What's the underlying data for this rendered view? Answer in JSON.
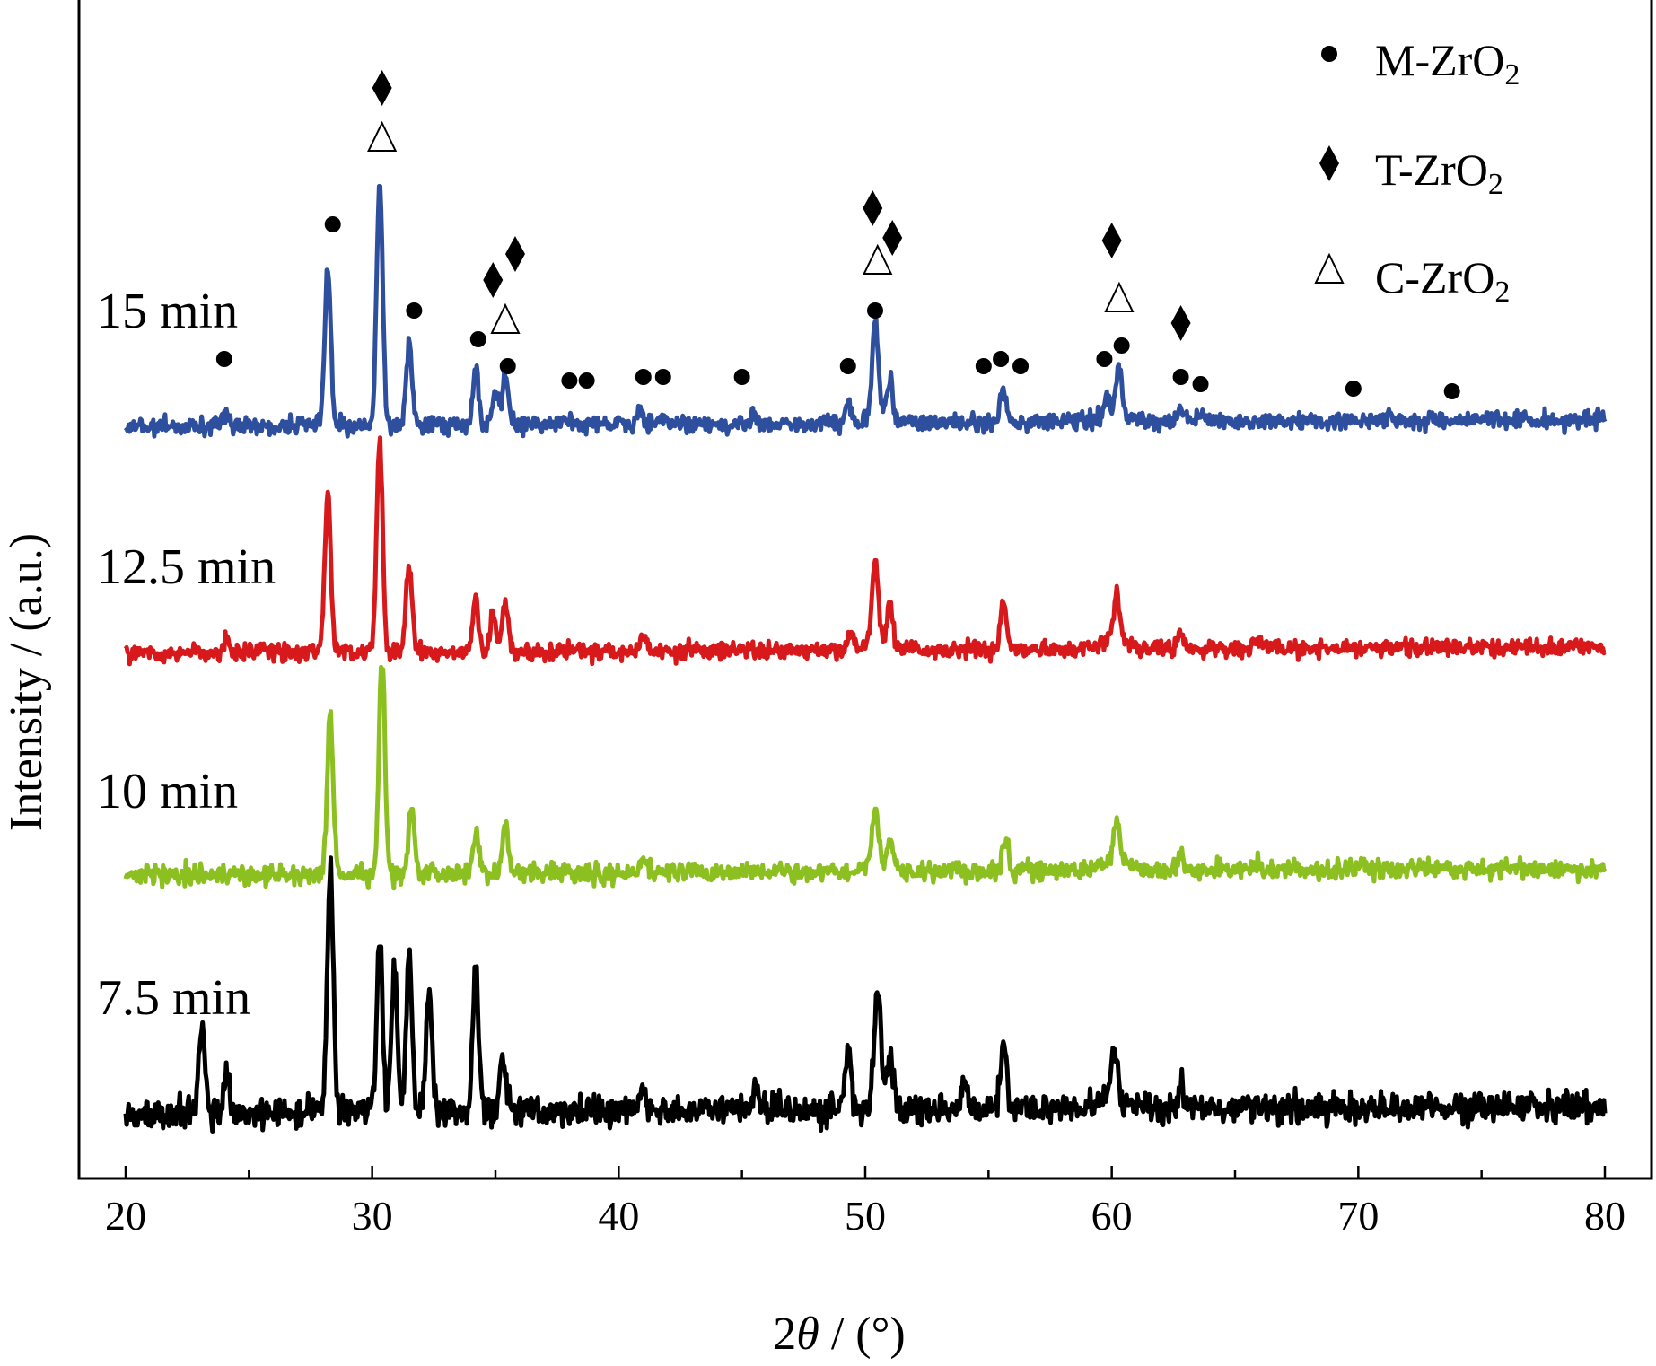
{
  "chart_data": {
    "type": "line",
    "xlabel_prefix": "2",
    "xlabel_symbol": "θ",
    "xlabel_suffix": " / (°)",
    "ylabel": "Intensity / (a.u.)",
    "xlim": [
      20,
      80
    ],
    "x_ticks": [
      "20",
      "30",
      "40",
      "50",
      "60",
      "70",
      "80"
    ],
    "grid": false,
    "legend_position": "top-right",
    "legend": [
      {
        "marker": "circle",
        "prefix": "M-ZrO",
        "sub": "2"
      },
      {
        "marker": "diamond",
        "prefix": "T-ZrO",
        "sub": "2"
      },
      {
        "marker": "triangle",
        "prefix": "C-ZrO",
        "sub": "2"
      }
    ],
    "series": [
      {
        "name": "15 min",
        "color": "#2e4f9e",
        "peaks": [
          [
            24.1,
            0.08
          ],
          [
            28.2,
            1.0
          ],
          [
            30.3,
            1.55
          ],
          [
            31.5,
            0.5
          ],
          [
            34.2,
            0.35
          ],
          [
            35.0,
            0.2
          ],
          [
            35.4,
            0.3
          ],
          [
            38.0,
            0.05
          ],
          [
            40.9,
            0.09
          ],
          [
            41.8,
            0.06
          ],
          [
            45.5,
            0.07
          ],
          [
            49.3,
            0.12
          ],
          [
            50.4,
            0.6
          ],
          [
            51.0,
            0.25
          ],
          [
            55.6,
            0.22
          ],
          [
            59.8,
            0.12
          ],
          [
            60.3,
            0.28
          ],
          [
            62.8,
            0.07
          ],
          [
            63.6,
            0.05
          ],
          [
            71.3,
            0.04
          ]
        ]
      },
      {
        "name": "12.5 min",
        "color": "#d7191c",
        "peaks": [
          [
            24.1,
            0.1
          ],
          [
            28.2,
            1.0
          ],
          [
            30.3,
            1.35
          ],
          [
            31.5,
            0.55
          ],
          [
            34.2,
            0.35
          ],
          [
            34.9,
            0.25
          ],
          [
            35.4,
            0.32
          ],
          [
            41.0,
            0.1
          ],
          [
            49.4,
            0.12
          ],
          [
            50.4,
            0.55
          ],
          [
            51.0,
            0.25
          ],
          [
            55.6,
            0.3
          ],
          [
            60.2,
            0.28
          ],
          [
            62.8,
            0.12
          ],
          [
            65.9,
            0.05
          ]
        ]
      },
      {
        "name": "10 min",
        "color": "#8cc020",
        "peaks": [
          [
            28.3,
            0.95
          ],
          [
            30.4,
            1.3
          ],
          [
            31.6,
            0.4
          ],
          [
            34.2,
            0.25
          ],
          [
            35.4,
            0.3
          ],
          [
            41.0,
            0.07
          ],
          [
            50.4,
            0.35
          ],
          [
            51.0,
            0.15
          ],
          [
            55.7,
            0.2
          ],
          [
            60.2,
            0.25
          ],
          [
            62.8,
            0.08
          ],
          [
            65.9,
            0.06
          ]
        ]
      },
      {
        "name": "7.5 min",
        "color": "#000000",
        "peaks": [
          [
            23.1,
            0.45
          ],
          [
            24.1,
            0.18
          ],
          [
            28.3,
            1.3
          ],
          [
            30.3,
            0.9
          ],
          [
            30.9,
            0.75
          ],
          [
            31.5,
            0.8
          ],
          [
            32.3,
            0.65
          ],
          [
            34.2,
            0.75
          ],
          [
            35.3,
            0.3
          ],
          [
            41.0,
            0.12
          ],
          [
            45.6,
            0.12
          ],
          [
            49.3,
            0.35
          ],
          [
            50.5,
            0.6
          ],
          [
            51.0,
            0.25
          ],
          [
            54.0,
            0.15
          ],
          [
            55.6,
            0.35
          ],
          [
            60.1,
            0.28
          ],
          [
            62.8,
            0.12
          ]
        ]
      }
    ],
    "markers": [
      {
        "type": "diamond",
        "x": 30.4,
        "level": "t1"
      },
      {
        "type": "triangle",
        "x": 30.4,
        "level": "t2"
      },
      {
        "type": "circle",
        "x": 28.4,
        "level": "a"
      },
      {
        "type": "circle",
        "x": 24.0,
        "level": "f"
      },
      {
        "type": "circle",
        "x": 31.7,
        "level": "c"
      },
      {
        "type": "diamond",
        "x": 35.8,
        "level": "b"
      },
      {
        "type": "diamond",
        "x": 34.9,
        "level": "b2"
      },
      {
        "type": "triangle",
        "x": 35.4,
        "level": "c2"
      },
      {
        "type": "circle",
        "x": 34.3,
        "level": "d"
      },
      {
        "type": "circle",
        "x": 35.5,
        "level": "e"
      },
      {
        "type": "circle",
        "x": 38.0,
        "level": "g"
      },
      {
        "type": "circle",
        "x": 38.7,
        "level": "g"
      },
      {
        "type": "circle",
        "x": 41.0,
        "level": "g2"
      },
      {
        "type": "circle",
        "x": 41.8,
        "level": "g2"
      },
      {
        "type": "circle",
        "x": 45.0,
        "level": "g2"
      },
      {
        "type": "circle",
        "x": 49.3,
        "level": "e"
      },
      {
        "type": "diamond",
        "x": 50.3,
        "level": "a2"
      },
      {
        "type": "diamond",
        "x": 51.1,
        "level": "a3"
      },
      {
        "type": "triangle",
        "x": 50.5,
        "level": "b3"
      },
      {
        "type": "circle",
        "x": 50.4,
        "level": "c"
      },
      {
        "type": "circle",
        "x": 54.8,
        "level": "e"
      },
      {
        "type": "circle",
        "x": 55.5,
        "level": "e1"
      },
      {
        "type": "circle",
        "x": 56.3,
        "level": "e"
      },
      {
        "type": "diamond",
        "x": 60.0,
        "level": "b4"
      },
      {
        "type": "triangle",
        "x": 60.3,
        "level": "c3"
      },
      {
        "type": "circle",
        "x": 59.7,
        "level": "e1"
      },
      {
        "type": "circle",
        "x": 60.4,
        "level": "d2"
      },
      {
        "type": "diamond",
        "x": 62.8,
        "level": "c4"
      },
      {
        "type": "circle",
        "x": 62.8,
        "level": "g2"
      },
      {
        "type": "circle",
        "x": 63.6,
        "level": "g3"
      },
      {
        "type": "circle",
        "x": 69.8,
        "level": "h"
      },
      {
        "type": "circle",
        "x": 73.8,
        "level": "h2"
      }
    ]
  }
}
